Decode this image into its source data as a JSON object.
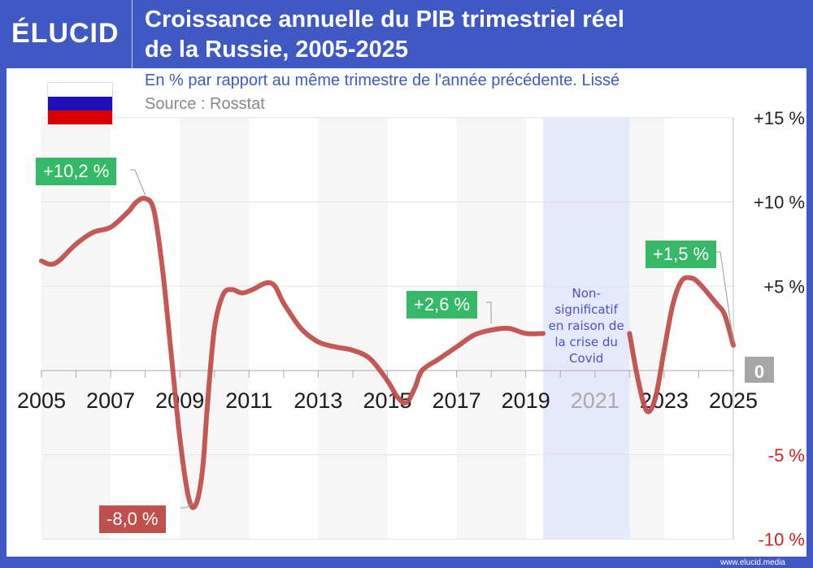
{
  "header": {
    "logo": "ÉLUCID",
    "title_line1": "Croissance annuelle du PIB trimestriel réel",
    "title_line2": "de la Russie, 2005-2025"
  },
  "subtitle": "En % par rapport au même trimestre de l'année précédente. Lissé",
  "source": "Source : Rosstat",
  "footer": "www.elucid.media",
  "flag_colors": [
    "#ffffff",
    "#1f0fb4",
    "#d80000"
  ],
  "colors": {
    "line": "#c0504d",
    "positive_label": "#35b868",
    "negative_label": "#c0504d",
    "covid_band": "#e6e8fb",
    "brand": "#3f58c4"
  },
  "chart_data": {
    "type": "line",
    "title": "Croissance annuelle du PIB trimestriel réel de la Russie, 2005-2025",
    "xlim": [
      2005,
      2025
    ],
    "ylim": [
      -10,
      15
    ],
    "x_ticks": [
      "2005",
      "2007",
      "2009",
      "2011",
      "2013",
      "2015",
      "2017",
      "2019",
      "2021",
      "2023",
      "2025"
    ],
    "y_ticks": [
      {
        "v": 15,
        "label": "+15 %"
      },
      {
        "v": 10,
        "label": "+10 %"
      },
      {
        "v": 5,
        "label": "+5 %"
      },
      {
        "v": 0,
        "label": "0"
      },
      {
        "v": -5,
        "label": "-5 %"
      },
      {
        "v": -10,
        "label": "-10 %"
      }
    ],
    "grid": true,
    "series": [
      {
        "segment": "2005-2019",
        "points": [
          [
            2005,
            6.5
          ],
          [
            2005.25,
            6.3
          ],
          [
            2005.5,
            6.5
          ],
          [
            2006,
            7.5
          ],
          [
            2006.5,
            8.2
          ],
          [
            2007,
            8.5
          ],
          [
            2007.5,
            9.4
          ],
          [
            2007.75,
            10.0
          ],
          [
            2008,
            10.2
          ],
          [
            2008.25,
            9.5
          ],
          [
            2008.5,
            6.0
          ],
          [
            2008.75,
            1.0
          ],
          [
            2009,
            -4.0
          ],
          [
            2009.25,
            -7.5
          ],
          [
            2009.45,
            -8.0
          ],
          [
            2009.65,
            -6.0
          ],
          [
            2009.8,
            -2.0
          ],
          [
            2010,
            2.5
          ],
          [
            2010.25,
            4.5
          ],
          [
            2010.5,
            4.8
          ],
          [
            2010.8,
            4.6
          ],
          [
            2011.1,
            4.8
          ],
          [
            2011.5,
            5.2
          ],
          [
            2011.75,
            5.0
          ],
          [
            2012,
            4.0
          ],
          [
            2012.5,
            2.5
          ],
          [
            2013,
            1.7
          ],
          [
            2013.5,
            1.4
          ],
          [
            2014,
            1.2
          ],
          [
            2014.5,
            0.7
          ],
          [
            2015,
            -0.6
          ],
          [
            2015.3,
            -1.6
          ],
          [
            2015.55,
            -1.9
          ],
          [
            2015.8,
            -1.0
          ],
          [
            2016,
            0.0
          ],
          [
            2016.5,
            0.7
          ],
          [
            2017,
            1.4
          ],
          [
            2017.5,
            2.1
          ],
          [
            2018,
            2.4
          ],
          [
            2018.5,
            2.5
          ],
          [
            2019,
            2.2
          ],
          [
            2019.5,
            2.2
          ]
        ]
      },
      {
        "segment": "2022-2025",
        "points": [
          [
            2022,
            2.2
          ],
          [
            2022.25,
            -0.6
          ],
          [
            2022.5,
            -2.4
          ],
          [
            2022.75,
            -1.6
          ],
          [
            2023,
            1.2
          ],
          [
            2023.25,
            3.9
          ],
          [
            2023.5,
            5.3
          ],
          [
            2023.75,
            5.5
          ],
          [
            2024,
            5.2
          ],
          [
            2024.5,
            4.0
          ],
          [
            2024.75,
            3.3
          ],
          [
            2025,
            1.5
          ]
        ]
      }
    ],
    "shaded_periods": [
      [
        2005,
        2007
      ],
      [
        2009,
        2011
      ],
      [
        2013,
        2015
      ],
      [
        2017,
        2019
      ],
      [
        2021,
        2023
      ]
    ],
    "covid_period": [
      2019.5,
      2022
    ],
    "covid_note": [
      "Non-",
      "significatif",
      "en raison de",
      "la crise du",
      "Covid"
    ],
    "annotations": [
      {
        "label": "+10,2 %",
        "x": 2008,
        "y": 10.2,
        "kind": "positive"
      },
      {
        "label": "-8,0 %",
        "x": 2009.45,
        "y": -8.0,
        "kind": "negative"
      },
      {
        "label": "+2,6 %",
        "x": 2018,
        "y": 2.6,
        "kind": "positive"
      },
      {
        "label": "+1,5 %",
        "x": 2025,
        "y": 1.5,
        "kind": "positive"
      }
    ]
  }
}
